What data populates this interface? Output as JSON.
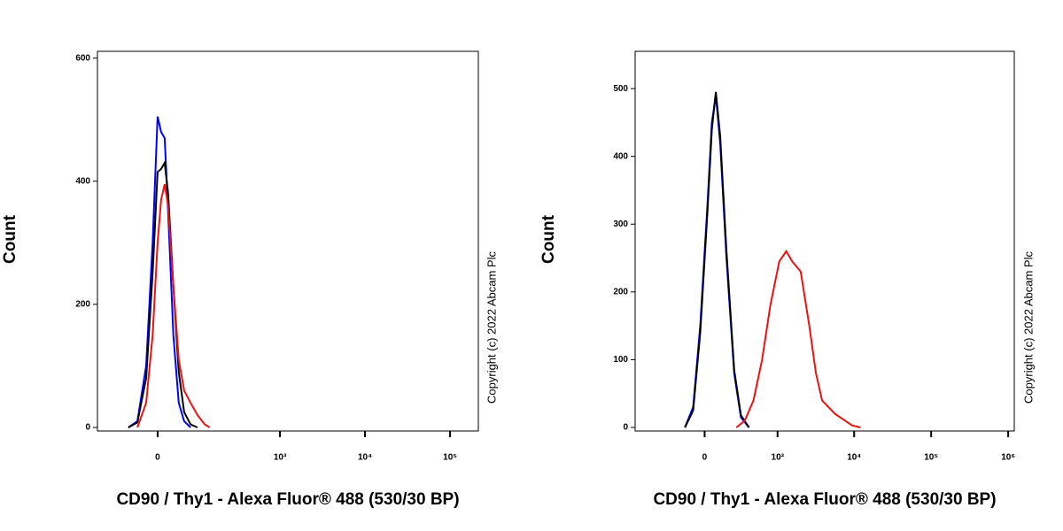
{
  "chart_data": [
    {
      "type": "line",
      "xscale": "asinh",
      "ylabel": "Count",
      "xlabel": "CD90 / Thy1 - Alexa Fluor® 488 (530/30 BP)",
      "annotation": "Copyright (c) 2022 Abcam Plc",
      "xlim": [
        -179,
        215000
      ],
      "xticks": [
        0,
        {
          "value": 1000,
          "label": "10³"
        },
        {
          "value": 10000,
          "label": "10⁴"
        },
        {
          "value": 100000,
          "label": "10⁵"
        }
      ],
      "ylim": [
        0,
        611
      ],
      "yticks": [
        0,
        200,
        400,
        600
      ],
      "series": [
        {
          "color": "#0000ff",
          "x": [
            -64,
            -42,
            -23,
            -10,
            0,
            7,
            14,
            21,
            32,
            44,
            57,
            74
          ],
          "values": [
            0,
            10,
            100,
            300,
            505,
            480,
            470,
            350,
            150,
            40,
            10,
            0
          ]
        },
        {
          "color": "#000000",
          "x": [
            -64,
            -42,
            -23,
            -10,
            0,
            7,
            14,
            21,
            32,
            44,
            57,
            74,
            95
          ],
          "values": [
            0,
            8,
            80,
            250,
            415,
            420,
            430,
            380,
            230,
            90,
            25,
            5,
            0
          ]
        },
        {
          "color": "#ee1111",
          "x": [
            -42,
            -23,
            -10,
            0,
            7,
            14,
            21,
            32,
            44,
            57,
            74,
            95,
            120,
            140
          ],
          "values": [
            0,
            40,
            150,
            300,
            370,
            395,
            360,
            230,
            110,
            60,
            40,
            20,
            5,
            0
          ]
        }
      ]
    },
    {
      "type": "line",
      "xscale": "asinh",
      "ylabel": "Count",
      "xlabel": "CD90 / Thy1 - Alexa Fluor® 488 (530/30 BP)",
      "annotation": "Copyright (c) 2022 Abcam Plc",
      "xlim": [
        -900,
        1200000
      ],
      "xticks": [
        0,
        {
          "value": 1000,
          "label": "10³"
        },
        {
          "value": 10000,
          "label": "10⁴"
        },
        {
          "value": 100000,
          "label": "10⁵"
        },
        {
          "value": 1000000,
          "label": "10⁶"
        }
      ],
      "ylim": [
        0,
        555
      ],
      "yticks": [
        0,
        100,
        200,
        300,
        400,
        500
      ],
      "series": [
        {
          "color": "#0000ff",
          "x": [
            -143,
            -80,
            -30,
            20,
            50,
            78,
            110,
            160,
            230,
            300,
            400
          ],
          "values": [
            0,
            30,
            150,
            330,
            450,
            490,
            420,
            250,
            80,
            15,
            0
          ]
        },
        {
          "color": "#000000",
          "x": [
            -143,
            -80,
            -30,
            20,
            50,
            78,
            110,
            160,
            230,
            300,
            400
          ],
          "values": [
            0,
            25,
            140,
            320,
            440,
            495,
            430,
            260,
            85,
            18,
            0
          ]
        },
        {
          "color": "#ee1111",
          "x": [
            252,
            346,
            467,
            618,
            800,
            1054,
            1303,
            1560,
            2015,
            2610,
            3190,
            3830,
            5650,
            9400,
            12100
          ],
          "values": [
            0,
            10,
            40,
            100,
            180,
            245,
            260,
            245,
            230,
            150,
            80,
            40,
            20,
            3,
            0
          ]
        }
      ]
    }
  ]
}
